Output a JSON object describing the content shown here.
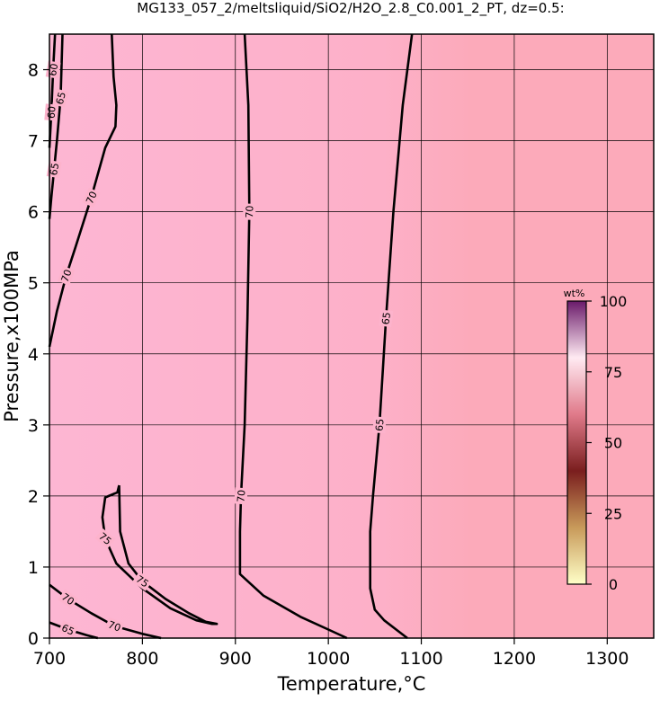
{
  "chart_data": {
    "type": "contour",
    "title": "MG133_057_2/meltsliquid/SiO2/H2O_2.8_C0.001_2_PT, dz=0.5:",
    "x_label": "Temperature,°C",
    "y_label": "Pressure,x100MPa",
    "xlim": [
      700,
      1350
    ],
    "xticks": [
      700,
      800,
      900,
      1000,
      1100,
      1200,
      1300
    ],
    "ylim": [
      0,
      8.5
    ],
    "yticks": [
      0,
      1,
      2,
      3,
      4,
      5,
      6,
      7,
      8
    ],
    "grid": true,
    "contours": [
      {
        "level": 70,
        "x": [
          910,
          914,
          915,
          913,
          910,
          906,
          905,
          905,
          930,
          970,
          1000,
          1020
        ],
        "y": [
          8.5,
          7.5,
          6,
          4.5,
          3,
          2,
          1.5,
          0.9,
          0.6,
          0.3,
          0.12,
          0
        ]
      },
      {
        "level": 65,
        "x": [
          1090,
          1080,
          1070,
          1062,
          1055,
          1048,
          1045,
          1045,
          1050,
          1060,
          1075,
          1085
        ],
        "y": [
          8.5,
          7.5,
          6,
          4.5,
          3,
          2,
          1.5,
          0.7,
          0.4,
          0.25,
          0.1,
          0
        ]
      },
      {
        "level": 70,
        "x": [
          767,
          768,
          769,
          772,
          771,
          760,
          745,
          728,
          718,
          708,
          700
        ],
        "y": [
          8.5,
          8.2,
          7.9,
          7.5,
          7.2,
          6.9,
          6.2,
          5.5,
          5.1,
          4.6,
          4.1
        ]
      },
      {
        "level": 75,
        "x": [
          775,
          773,
          760,
          757,
          760,
          772,
          800,
          830,
          858,
          875,
          880,
          868,
          850,
          825,
          800,
          785,
          776,
          775
        ],
        "y": [
          2.15,
          2.05,
          1.98,
          1.7,
          1.4,
          1.05,
          0.7,
          0.42,
          0.25,
          0.2,
          0.2,
          0.23,
          0.35,
          0.55,
          0.8,
          1.05,
          1.5,
          2.15
        ]
      },
      {
        "level": 70,
        "x": [
          700,
          720,
          745,
          770,
          800,
          820
        ],
        "y": [
          0.75,
          0.55,
          0.35,
          0.17,
          0.06,
          0
        ]
      },
      {
        "level": 65,
        "x": [
          700,
          720,
          740,
          752
        ],
        "y": [
          0.22,
          0.12,
          0.04,
          0
        ]
      },
      {
        "level": 60,
        "x": [
          706,
          704,
          702,
          700
        ],
        "y": [
          8.5,
          8.0,
          7.4,
          6.9
        ]
      },
      {
        "level": 65,
        "x": [
          714,
          712,
          708,
          705,
          702,
          700
        ],
        "y": [
          8.5,
          7.6,
          7.0,
          6.6,
          6.2,
          5.9
        ]
      }
    ],
    "colorbar": {
      "label": "wt%",
      "lim": [
        0,
        100
      ],
      "ticks": [
        0,
        25,
        50,
        75,
        100
      ],
      "colors": [
        "#ffffc8",
        "#c89a5a",
        "#7a1e1e",
        "#e07a8a",
        "#ffeaf2",
        "#6a1a6a"
      ]
    }
  }
}
